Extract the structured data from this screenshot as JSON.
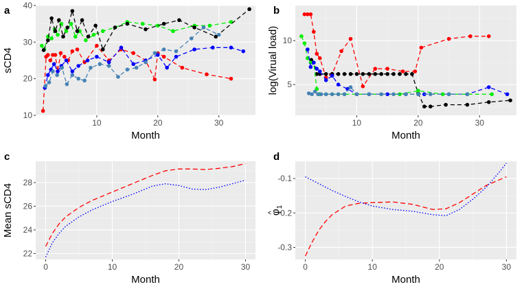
{
  "chart_data": [
    {
      "panel": "a",
      "type": "line",
      "style": "dashed-with-points",
      "xlabel": "Month",
      "ylabel": "sCD4",
      "xlim": [
        0,
        36
      ],
      "ylim": [
        10,
        40
      ],
      "xticks": [
        10,
        20,
        30
      ],
      "yticks": [
        10,
        20,
        30,
        40
      ],
      "series": [
        {
          "name": "red",
          "color": "#ff0000",
          "x": [
            1.2,
            1.7,
            2.0,
            2.4,
            2.8,
            3.2,
            3.6,
            4.1,
            4.7,
            5.3,
            6.0,
            6.8,
            8.0,
            10.0,
            12.0,
            14.0,
            16.0,
            18.0,
            19.5,
            20.0,
            21.0,
            24.0,
            28.0,
            32.0
          ],
          "y": [
            11.2,
            26.0,
            26.5,
            25.0,
            26.5,
            26.5,
            22.0,
            27.0,
            26.0,
            25.0,
            27.5,
            28.0,
            24.5,
            29.0,
            25.0,
            28.0,
            27.0,
            25.0,
            19.8,
            27.0,
            26.0,
            23.0,
            21.2,
            20.0
          ]
        },
        {
          "name": "green",
          "color": "#00ee00",
          "x": [
            1.0,
            1.4,
            2.0,
            2.6,
            3.1,
            3.6,
            4.2,
            5.0,
            5.8,
            6.5,
            7.2,
            8.2,
            9.5,
            11.0,
            13.0,
            15.0,
            17.5,
            20.0,
            22.5,
            26.0,
            28.5,
            32.0
          ],
          "y": [
            29.0,
            28.0,
            31.5,
            31.0,
            33.5,
            32.0,
            35.0,
            33.0,
            35.0,
            31.5,
            33.0,
            30.5,
            32.0,
            33.0,
            34.0,
            35.5,
            35.0,
            34.5,
            33.0,
            34.5,
            34.5,
            35.5
          ]
        },
        {
          "name": "black",
          "color": "#000000",
          "x": [
            1.3,
            2.0,
            2.6,
            3.2,
            3.8,
            4.5,
            5.2,
            6.0,
            6.8,
            7.6,
            8.6,
            9.8,
            11.0,
            13.0,
            15.0,
            18.0,
            21.0,
            23.5,
            26.0,
            29.5,
            35.0
          ],
          "y": [
            27.8,
            30.5,
            36.5,
            33.0,
            36.0,
            31.5,
            34.0,
            38.5,
            33.0,
            36.0,
            31.5,
            34.5,
            28.0,
            34.0,
            35.0,
            33.5,
            35.0,
            36.0,
            34.0,
            31.5,
            39.0
          ]
        },
        {
          "name": "blue",
          "color": "#0000ff",
          "x": [
            1.5,
            2.0,
            2.5,
            3.0,
            3.6,
            4.2,
            5.0,
            6.0,
            7.0,
            8.5,
            10.0,
            12.0,
            14.0,
            16.0,
            18.0,
            20.0,
            21.5,
            23.0,
            26.0,
            29.0,
            32.0,
            34.0
          ],
          "y": [
            17.5,
            21.0,
            22.5,
            24.0,
            22.0,
            23.5,
            25.0,
            22.0,
            23.5,
            25.0,
            26.0,
            24.5,
            28.5,
            24.0,
            25.0,
            26.5,
            23.0,
            26.0,
            28.0,
            28.5,
            28.5,
            27.5
          ]
        },
        {
          "name": "steelblue",
          "color": "#4682b4",
          "x": [
            1.6,
            2.2,
            2.8,
            3.5,
            4.3,
            5.1,
            6.0,
            7.0,
            8.0,
            9.0,
            10.5,
            12.0,
            13.5,
            15.0,
            16.5,
            18.0,
            19.5,
            21.0,
            23.0,
            25.5,
            27.5,
            30.0
          ],
          "y": [
            18.0,
            19.0,
            22.0,
            21.0,
            23.0,
            18.5,
            21.0,
            20.0,
            19.5,
            23.0,
            24.0,
            23.5,
            20.5,
            22.5,
            23.0,
            24.5,
            27.0,
            28.0,
            27.5,
            31.0,
            34.0,
            32.0
          ]
        }
      ]
    },
    {
      "panel": "b",
      "type": "line",
      "style": "dashed-with-points",
      "xlabel": "Month",
      "ylabel": "log(Virual load)",
      "xlim": [
        0,
        36
      ],
      "ylim": [
        1.5,
        14
      ],
      "xticks": [
        10,
        20,
        30
      ],
      "yticks": [
        5,
        10
      ],
      "series": [
        {
          "name": "red",
          "color": "#ff0000",
          "x": [
            1.5,
            2.0,
            2.5,
            3.0,
            3.5,
            4.0,
            5.0,
            6.0,
            7.5,
            9.0,
            11.0,
            13.0,
            15.0,
            17.5,
            19.5,
            20.5,
            25.0,
            28.5,
            31.5
          ],
          "y": [
            13.0,
            13.0,
            13.0,
            11.0,
            8.5,
            8.0,
            5.8,
            6.2,
            8.8,
            10.2,
            4.8,
            6.8,
            6.8,
            6.5,
            6.5,
            9.2,
            10.2,
            10.5,
            10.5
          ]
        },
        {
          "name": "black",
          "color": "#000000",
          "x": [
            2.6,
            3.0,
            3.5,
            4.0,
            5.0,
            6.0,
            7.0,
            8.0,
            9.0,
            10.0,
            11.0,
            12.0,
            13.0,
            14.0,
            15.0,
            16.0,
            17.0,
            18.0,
            19.0,
            20.0,
            21.0,
            22.0,
            24.5,
            28.0,
            31.5,
            35.0
          ],
          "y": [
            7.8,
            7.5,
            6.2,
            6.2,
            6.2,
            6.2,
            6.2,
            6.2,
            6.2,
            6.2,
            6.2,
            6.2,
            6.2,
            6.2,
            6.2,
            6.2,
            6.2,
            6.2,
            6.2,
            4.0,
            2.5,
            2.5,
            2.7,
            2.7,
            3.0,
            3.2
          ]
        },
        {
          "name": "green",
          "color": "#00ee00",
          "x": [
            1.0,
            1.5,
            2.0,
            2.5,
            3.0,
            3.5,
            4.0,
            5.0,
            6.0,
            8.0,
            10.0,
            14.0,
            17.0,
            20.0,
            24.0,
            28.0,
            32.0
          ],
          "y": [
            10.5,
            9.7,
            8.0,
            7.5,
            7.5,
            4.5,
            3.9,
            3.9,
            3.9,
            3.9,
            3.9,
            3.9,
            3.9,
            4.3,
            3.9,
            3.9,
            3.9
          ]
        },
        {
          "name": "blue",
          "color": "#0000ff",
          "x": [
            2.0,
            2.5,
            3.0,
            3.5,
            4.0,
            5.0,
            6.0,
            7.0,
            8.5,
            10.0,
            12.0,
            15.0,
            18.0,
            21.0,
            25.0,
            28.0,
            31.5,
            34.5
          ],
          "y": [
            9.0,
            7.0,
            7.5,
            6.8,
            6.5,
            5.5,
            6.0,
            5.0,
            4.5,
            3.9,
            3.9,
            3.9,
            3.9,
            3.9,
            3.9,
            3.9,
            4.7,
            3.9
          ]
        },
        {
          "name": "steelblue",
          "color": "#4682b4",
          "x": [
            2.2,
            2.7,
            3.2,
            3.7,
            4.2,
            5.0,
            6.0,
            7.0,
            8.0,
            9.0,
            10.0,
            12.0,
            14.0,
            16.0,
            18.0,
            20.0,
            22.0,
            25.0,
            28.0
          ],
          "y": [
            4.0,
            3.9,
            4.2,
            3.9,
            3.9,
            3.9,
            3.9,
            3.9,
            3.9,
            4.7,
            3.9,
            3.9,
            3.9,
            3.9,
            3.9,
            3.9,
            3.9,
            3.9,
            3.9
          ]
        }
      ]
    },
    {
      "panel": "c",
      "type": "line",
      "xlabel": "Month",
      "ylabel": "Mean sCD4",
      "xlim": [
        -1.5,
        31.5
      ],
      "ylim": [
        21.5,
        29.8
      ],
      "xticks": [
        0,
        10,
        20,
        30
      ],
      "yticks": [
        22,
        24,
        26,
        28
      ],
      "series": [
        {
          "name": "red",
          "color": "#ff0000",
          "dash": "dashed",
          "x": [
            0,
            1,
            2,
            3,
            5,
            7,
            10,
            13,
            16,
            18,
            20,
            22,
            24,
            26,
            28,
            30
          ],
          "y": [
            22.6,
            23.7,
            24.5,
            25.1,
            25.9,
            26.5,
            27.2,
            27.9,
            28.6,
            29.0,
            29.15,
            29.15,
            29.1,
            29.2,
            29.35,
            29.6
          ]
        },
        {
          "name": "blue",
          "color": "#0000ff",
          "dash": "dotted",
          "x": [
            0,
            1,
            2,
            3,
            5,
            7,
            10,
            13,
            16,
            18,
            20,
            22,
            24,
            26,
            28,
            30
          ],
          "y": [
            21.7,
            22.9,
            23.7,
            24.3,
            25.1,
            25.7,
            26.4,
            27.0,
            27.7,
            27.9,
            27.75,
            27.45,
            27.4,
            27.6,
            27.9,
            28.2
          ]
        }
      ]
    },
    {
      "panel": "d",
      "type": "line",
      "xlabel": "Month",
      "ylabel": "φ̂1",
      "ylabel_main": "φ",
      "ylabel_hat": "^",
      "ylabel_sub": "1",
      "xlim": [
        -1.5,
        31.5
      ],
      "ylim": [
        -0.335,
        -0.05
      ],
      "xticks": [
        0,
        10,
        20,
        30
      ],
      "yticks": [
        -0.3,
        -0.2,
        -0.1
      ],
      "series": [
        {
          "name": "red",
          "color": "#ff0000",
          "dash": "dashed",
          "x": [
            0,
            1,
            2,
            3,
            4,
            6,
            8,
            10,
            13,
            16,
            19,
            21,
            23,
            25,
            27,
            30
          ],
          "y": [
            -0.325,
            -0.285,
            -0.25,
            -0.225,
            -0.205,
            -0.18,
            -0.172,
            -0.17,
            -0.168,
            -0.175,
            -0.19,
            -0.188,
            -0.17,
            -0.145,
            -0.12,
            -0.095
          ]
        },
        {
          "name": "blue",
          "color": "#0000ff",
          "dash": "dotted",
          "x": [
            0,
            2,
            4,
            6,
            8,
            10,
            13,
            16,
            19,
            21,
            23,
            25,
            27,
            29,
            30
          ],
          "y": [
            -0.095,
            -0.115,
            -0.135,
            -0.152,
            -0.168,
            -0.18,
            -0.19,
            -0.195,
            -0.205,
            -0.208,
            -0.19,
            -0.16,
            -0.125,
            -0.08,
            -0.055
          ]
        }
      ]
    }
  ]
}
